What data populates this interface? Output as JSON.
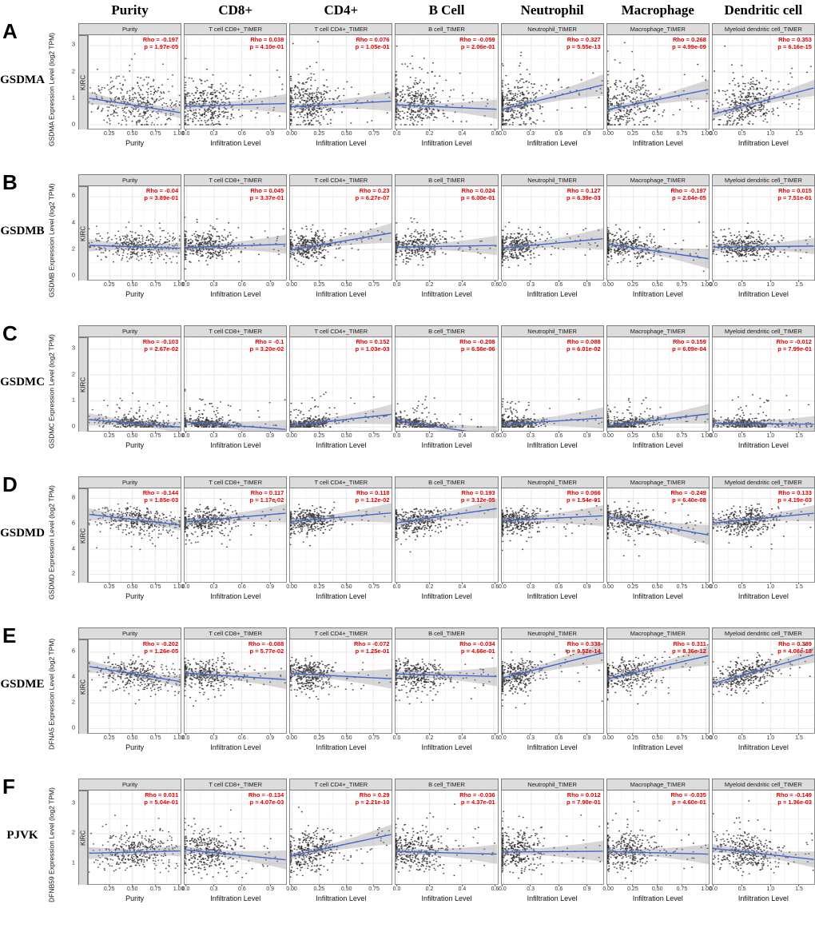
{
  "colors": {
    "trend_line": "#3e67cf",
    "ci_band": "#8c8c8c",
    "annotation_red": "#e60000",
    "strip_background": "#dcdcdc",
    "point": "#2a2a2a",
    "grid_major": "#e8e8e8",
    "grid_minor": "#f4f4f4"
  },
  "header_columns": [
    "Purity",
    "CD8+",
    "CD4+",
    "B Cell",
    "Neutrophil",
    "Macrophage",
    "Dendritic cell"
  ],
  "chart_data": {
    "type": "scatter",
    "description": "Grid of TIMER correlation scatter plots: gene expression (log2 TPM) vs tumor purity and immune cell infiltration level in KIRC. Each panel shows scatter points, blue linear fit with gray confidence band, and partial Spearman Rho with p-value.",
    "cohort": "KIRC",
    "columns": [
      {
        "title": "Purity",
        "x_label": "Purity",
        "x_ticks": [
          "0.25",
          "0.50",
          "0.75",
          "1.00"
        ],
        "x_tick_values": [
          0.25,
          0.5,
          0.75,
          1.0
        ],
        "x_range": [
          0.02,
          1.03
        ]
      },
      {
        "title": "T cell CD8+_TIMER",
        "x_label": "Infiltration Level",
        "x_ticks": [
          "0.0",
          "0.3",
          "0.6",
          "0.9"
        ],
        "x_tick_values": [
          0,
          0.3,
          0.6,
          0.9
        ],
        "x_range": [
          -0.02,
          1.08
        ]
      },
      {
        "title": "T cell CD4+_TIMER",
        "x_label": "Infiltration Level",
        "x_ticks": [
          "0.00",
          "0.25",
          "0.50",
          "0.75"
        ],
        "x_tick_values": [
          0,
          0.25,
          0.5,
          0.75
        ],
        "x_range": [
          -0.02,
          0.92
        ]
      },
      {
        "title": "B cell_TIMER",
        "x_label": "Infiltration Level",
        "x_ticks": [
          "0.0",
          "0.2",
          "0.4",
          "0.6"
        ],
        "x_tick_values": [
          0,
          0.2,
          0.4,
          0.6
        ],
        "x_range": [
          -0.01,
          0.62
        ]
      },
      {
        "title": "Neutrophil_TIMER",
        "x_label": "Infiltration Level",
        "x_ticks": [
          "0.0",
          "0.3",
          "0.6",
          "0.9"
        ],
        "x_tick_values": [
          0,
          0.3,
          0.6,
          0.9
        ],
        "x_range": [
          -0.02,
          1.08
        ]
      },
      {
        "title": "Macrophage_TIMER",
        "x_label": "Infiltration Level",
        "x_ticks": [
          "0.00",
          "0.25",
          "0.50",
          "0.75",
          "1.00"
        ],
        "x_tick_values": [
          0,
          0.25,
          0.5,
          0.75,
          1.0
        ],
        "x_range": [
          -0.02,
          1.03
        ]
      },
      {
        "title": "Myeloid dendritic cell_TIMER",
        "x_label": "Infiltration Level",
        "x_ticks": [
          "0.0",
          "0.5",
          "1.0",
          "1.5"
        ],
        "x_tick_values": [
          0,
          0.5,
          1.0,
          1.5
        ],
        "x_range": [
          -0.03,
          1.78
        ]
      }
    ],
    "rows": [
      {
        "letter": "A",
        "gene": "GSDMA",
        "facet": "KIRC",
        "y_axis_label": "GSDMA Expression Level (log2 TPM)",
        "y_ticks": [
          "0",
          "1",
          "2",
          "3"
        ],
        "y_tick_values": [
          0,
          1,
          2,
          3
        ],
        "y_range": [
          -0.15,
          3.4
        ],
        "panels": [
          {
            "cell": "Purity",
            "rho": "-0.197",
            "p": "1.97e-05"
          },
          {
            "cell": "T cell CD8+_TIMER",
            "rho": "0.038",
            "p": "4.10e-01"
          },
          {
            "cell": "T cell CD4+_TIMER",
            "rho": "0.076",
            "p": "1.05e-01"
          },
          {
            "cell": "B cell_TIMER",
            "rho": "-0.059",
            "p": "2.06e-01"
          },
          {
            "cell": "Neutrophil_TIMER",
            "rho": "0.327",
            "p": "5.55e-13"
          },
          {
            "cell": "Macrophage_TIMER",
            "rho": "0.268",
            "p": "4.99e-09"
          },
          {
            "cell": "Myeloid dendritic cell_TIMER",
            "rho": "0.353",
            "p": "6.16e-15"
          }
        ]
      },
      {
        "letter": "B",
        "gene": "GSDMB",
        "facet": "KIRC",
        "y_axis_label": "GSDMB Expression Level (log2 TPM)",
        "y_ticks": [
          "0",
          "2",
          "4",
          "6"
        ],
        "y_tick_values": [
          0,
          2,
          4,
          6
        ],
        "y_range": [
          -0.3,
          6.8
        ],
        "panels": [
          {
            "cell": "Purity",
            "rho": "-0.04",
            "p": "3.89e-01"
          },
          {
            "cell": "T cell CD8+_TIMER",
            "rho": "0.045",
            "p": "3.37e-01"
          },
          {
            "cell": "T cell CD4+_TIMER",
            "rho": "0.23",
            "p": "6.27e-07"
          },
          {
            "cell": "B cell_TIMER",
            "rho": "0.024",
            "p": "6.00e-01"
          },
          {
            "cell": "Neutrophil_TIMER",
            "rho": "0.127",
            "p": "6.39e-03"
          },
          {
            "cell": "Macrophage_TIMER",
            "rho": "-0.197",
            "p": "2.04e-05"
          },
          {
            "cell": "Myeloid dendritic cell_TIMER",
            "rho": "0.015",
            "p": "7.51e-01"
          }
        ]
      },
      {
        "letter": "C",
        "gene": "GSDMC",
        "facet": "KIRC",
        "y_axis_label": "GSDMC Expression Level (log2 TPM)",
        "y_ticks": [
          "0",
          "1",
          "2",
          "3"
        ],
        "y_tick_values": [
          0,
          1,
          2,
          3
        ],
        "y_range": [
          -0.15,
          3.45
        ],
        "panels": [
          {
            "cell": "Purity",
            "rho": "-0.103",
            "p": "2.67e-02"
          },
          {
            "cell": "T cell CD8+_TIMER",
            "rho": "-0.1",
            "p": "3.20e-02"
          },
          {
            "cell": "T cell CD4+_TIMER",
            "rho": "0.152",
            "p": "1.03e-03"
          },
          {
            "cell": "B cell_TIMER",
            "rho": "-0.208",
            "p": "6.56e-06"
          },
          {
            "cell": "Neutrophil_TIMER",
            "rho": "0.088",
            "p": "6.01e-02"
          },
          {
            "cell": "Macrophage_TIMER",
            "rho": "0.159",
            "p": "6.09e-04"
          },
          {
            "cell": "Myeloid dendritic cell_TIMER",
            "rho": "-0.012",
            "p": "7.99e-01"
          }
        ]
      },
      {
        "letter": "D",
        "gene": "GSDMD",
        "facet": "KIRC",
        "y_axis_label": "GSDMD Expression Level (log2 TPM)",
        "y_ticks": [
          "2",
          "4",
          "6",
          "8"
        ],
        "y_tick_values": [
          2,
          4,
          6,
          8
        ],
        "y_range": [
          1.4,
          8.8
        ],
        "panels": [
          {
            "cell": "Purity",
            "rho": "-0.144",
            "p": "1.85e-03"
          },
          {
            "cell": "T cell CD8+_TIMER",
            "rho": "0.117",
            "p": "1.17e-02"
          },
          {
            "cell": "T cell CD4+_TIMER",
            "rho": "0.118",
            "p": "1.12e-02"
          },
          {
            "cell": "B cell_TIMER",
            "rho": "0.193",
            "p": "3.12e-05"
          },
          {
            "cell": "Neutrophil_TIMER",
            "rho": "0.066",
            "p": "1.54e-01"
          },
          {
            "cell": "Macrophage_TIMER",
            "rho": "-0.249",
            "p": "6.40e-08"
          },
          {
            "cell": "Myeloid dendritic cell_TIMER",
            "rho": "0.133",
            "p": "4.19e-03"
          }
        ]
      },
      {
        "letter": "E",
        "gene": "GSDME",
        "facet": "KIRC",
        "y_axis_label": "DFNA5 Expression Level (log2 TPM)",
        "y_ticks": [
          "0",
          "2",
          "4",
          "6"
        ],
        "y_tick_values": [
          0,
          2,
          4,
          6
        ],
        "y_range": [
          -0.35,
          7.0
        ],
        "panels": [
          {
            "cell": "Purity",
            "rho": "-0.202",
            "p": "1.26e-05"
          },
          {
            "cell": "T cell CD8+_TIMER",
            "rho": "-0.088",
            "p": "5.77e-02"
          },
          {
            "cell": "T cell CD4+_TIMER",
            "rho": "-0.072",
            "p": "1.25e-01"
          },
          {
            "cell": "B cell_TIMER",
            "rho": "-0.034",
            "p": "4.66e-01"
          },
          {
            "cell": "Neutrophil_TIMER",
            "rho": "0.338",
            "p": "9.52e-14"
          },
          {
            "cell": "Macrophage_TIMER",
            "rho": "0.311",
            "p": "8.36e-12"
          },
          {
            "cell": "Myeloid dendritic cell_TIMER",
            "rho": "0.389",
            "p": "4.08e-18"
          }
        ]
      },
      {
        "letter": "F",
        "gene": "PJVK",
        "facet": "KIRC",
        "y_axis_label": "DFNB59 Expression Level (log2 TPM)",
        "y_ticks": [
          "1",
          "2",
          "3"
        ],
        "y_tick_values": [
          1,
          2,
          3
        ],
        "y_range": [
          0.3,
          3.45
        ],
        "panels": [
          {
            "cell": "Purity",
            "rho": "0.031",
            "p": "5.04e-01"
          },
          {
            "cell": "T cell CD8+_TIMER",
            "rho": "-0.134",
            "p": "4.07e-03"
          },
          {
            "cell": "T cell CD4+_TIMER",
            "rho": "0.29",
            "p": "2.21e-10"
          },
          {
            "cell": "B cell_TIMER",
            "rho": "-0.036",
            "p": "4.37e-01"
          },
          {
            "cell": "Neutrophil_TIMER",
            "rho": "0.012",
            "p": "7.90e-01"
          },
          {
            "cell": "Macrophage_TIMER",
            "rho": "-0.035",
            "p": "4.60e-01"
          },
          {
            "cell": "Myeloid dendritic cell_TIMER",
            "rho": "-0.149",
            "p": "1.36e-03"
          }
        ]
      }
    ],
    "annotation_format": {
      "rho_prefix": "Rho = ",
      "p_prefix": "p = "
    },
    "legend_position": "none",
    "grid": true
  }
}
